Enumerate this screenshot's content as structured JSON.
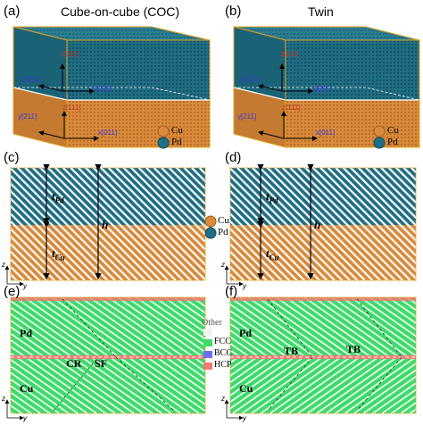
{
  "colors": {
    "cu": "#d98a3c",
    "cu_dark": "#a55e1c",
    "pd": "#1f6f84",
    "pd_dark": "#0e4a5a",
    "fcc": "#3ddc6a",
    "bcc": "#6f6ff2",
    "hcp": "#f07a72",
    "other": "#f2f2f2",
    "frame_gold": "#e0a020"
  },
  "panels": {
    "a": {
      "label": "(a)",
      "title": "Cube-on-cube (COC)"
    },
    "b": {
      "label": "(b)",
      "title": "Twin"
    },
    "c": {
      "label": "(c)"
    },
    "d": {
      "label": "(d)"
    },
    "e": {
      "label": "(e)"
    },
    "f": {
      "label": "(f)"
    }
  },
  "legend_top": {
    "cu": "Cu",
    "pd": "Pd"
  },
  "legend_mid": {
    "cu": "Cu",
    "pd": "Pd"
  },
  "legend_bottom": {
    "other": "Other",
    "fcc": "FCC",
    "bcc": "BCC",
    "hcp": "HCP"
  },
  "box_labels": {
    "a_pd_z": "z[111]",
    "a_pd_y": "y[211]",
    "a_pd_x": "x[011]",
    "a_cu_z": "z[111]",
    "a_cu_y": "y[211]",
    "a_cu_x": "x[011]",
    "b_pd_z": "z[111]",
    "b_pd_y": "y[211]",
    "b_pd_x": "x[011]",
    "b_cu_z": "z[111]",
    "b_cu_y": "y[211]",
    "b_cu_x": "x[011]"
  },
  "thickness": {
    "t_pd": "t",
    "t_pd_sub": "Pd",
    "t_cu": "t",
    "t_cu_sub": "Cu",
    "h": "h"
  },
  "axes": {
    "z": "z",
    "y": "y"
  },
  "defects": {
    "cr": "CR",
    "sf": "SF",
    "tb1": "TB",
    "tb2": "TB"
  },
  "layers": {
    "pd": "Pd",
    "cu": "Cu"
  }
}
